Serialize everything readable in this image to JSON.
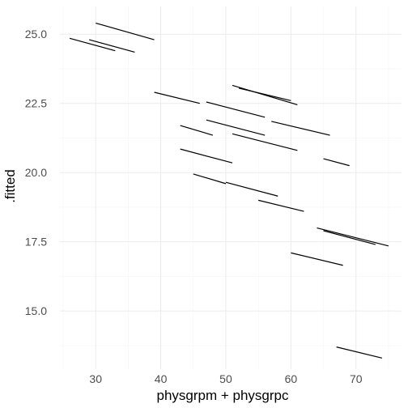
{
  "chart_data": {
    "type": "line",
    "xlabel": "physgrpm + physgrpc",
    "ylabel": ".fitted",
    "xlim": [
      24.5,
      77
    ],
    "ylim": [
      12.9,
      26.0
    ],
    "x_ticks": [
      30,
      40,
      50,
      60,
      70
    ],
    "x_tick_labels": [
      "30",
      "40",
      "50",
      "60",
      "70"
    ],
    "y_ticks": [
      15.0,
      17.5,
      20.0,
      22.5,
      25.0
    ],
    "y_tick_labels": [
      "15.0",
      "17.5",
      "20.0",
      "22.5",
      "25.0"
    ],
    "grid": true,
    "segments": [
      {
        "x": [
          30,
          39
        ],
        "y": [
          25.4,
          24.8
        ]
      },
      {
        "x": [
          26,
          33
        ],
        "y": [
          24.85,
          24.4
        ]
      },
      {
        "x": [
          29,
          36
        ],
        "y": [
          24.8,
          24.35
        ]
      },
      {
        "x": [
          39,
          46
        ],
        "y": [
          22.9,
          22.5
        ]
      },
      {
        "x": [
          51,
          61
        ],
        "y": [
          23.15,
          22.45
        ]
      },
      {
        "x": [
          52,
          60
        ],
        "y": [
          23.05,
          22.6
        ]
      },
      {
        "x": [
          47,
          56
        ],
        "y": [
          22.55,
          22.0
        ]
      },
      {
        "x": [
          47,
          56
        ],
        "y": [
          21.9,
          21.35
        ]
      },
      {
        "x": [
          43,
          48
        ],
        "y": [
          21.7,
          21.35
        ]
      },
      {
        "x": [
          57,
          66
        ],
        "y": [
          21.85,
          21.35
        ]
      },
      {
        "x": [
          51,
          61
        ],
        "y": [
          21.4,
          20.8
        ]
      },
      {
        "x": [
          43,
          51
        ],
        "y": [
          20.85,
          20.35
        ]
      },
      {
        "x": [
          65,
          69
        ],
        "y": [
          20.5,
          20.25
        ]
      },
      {
        "x": [
          45,
          50
        ],
        "y": [
          19.95,
          19.6
        ]
      },
      {
        "x": [
          50,
          58
        ],
        "y": [
          19.65,
          19.15
        ]
      },
      {
        "x": [
          55,
          62
        ],
        "y": [
          19.0,
          18.6
        ]
      },
      {
        "x": [
          64,
          75
        ],
        "y": [
          18.0,
          17.35
        ]
      },
      {
        "x": [
          65,
          73
        ],
        "y": [
          17.9,
          17.4
        ]
      },
      {
        "x": [
          60,
          68
        ],
        "y": [
          17.1,
          16.65
        ]
      },
      {
        "x": [
          67,
          74
        ],
        "y": [
          13.7,
          13.3
        ]
      }
    ]
  }
}
